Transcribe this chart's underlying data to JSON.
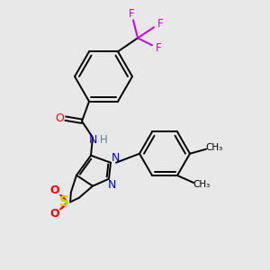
{
  "background_color": "#e8e8e8",
  "colors": {
    "C": "#000000",
    "N": "#0000cc",
    "O": "#ff0000",
    "S": "#cccc00",
    "F": "#cc00cc",
    "H": "#448888",
    "bond": "#000000"
  },
  "figsize": [
    3.0,
    3.0
  ],
  "dpi": 100
}
